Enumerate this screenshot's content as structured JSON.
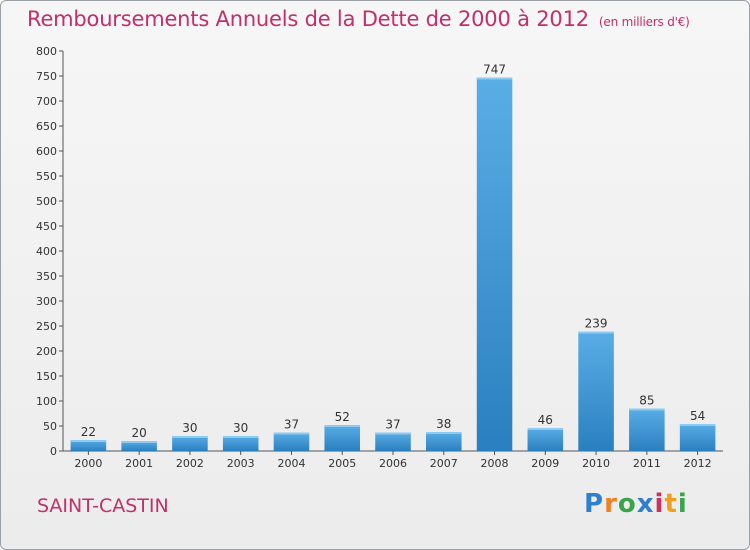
{
  "header": {
    "title": "Remboursements Annuels de la Dette de 2000 à 2012",
    "unit": "(en milliers d'€)"
  },
  "footer": {
    "commune": "SAINT-CASTIN",
    "logo": [
      "P",
      "r",
      "o",
      "x",
      "i",
      "t",
      "i"
    ]
  },
  "colors": {
    "title": "#c0306a",
    "bar_top": "#5aaee6",
    "bar_bottom": "#2a7fbf",
    "logo": [
      "#2f7fd0",
      "#f08020",
      "#3aa44a",
      "#2f7fd0",
      "#d03060",
      "#f0a020",
      "#3aa44a"
    ]
  },
  "chart_data": {
    "type": "bar",
    "categories": [
      "2000",
      "2001",
      "2002",
      "2003",
      "2004",
      "2005",
      "2006",
      "2007",
      "2008",
      "2009",
      "2010",
      "2011",
      "2012"
    ],
    "values": [
      22,
      20,
      30,
      30,
      37,
      52,
      37,
      38,
      747,
      46,
      239,
      85,
      54
    ],
    "data_labels": [
      "22",
      "20",
      "30",
      "30",
      "37",
      "52",
      "37",
      "38",
      "747",
      "46",
      "239",
      "85",
      "54"
    ],
    "y_ticks": [
      "0",
      "50",
      "100",
      "150",
      "200",
      "250",
      "300",
      "350",
      "400",
      "450",
      "500",
      "550",
      "600",
      "650",
      "700",
      "750",
      "800"
    ],
    "ylim": [
      0,
      800
    ],
    "grid": false,
    "legend": "none"
  }
}
